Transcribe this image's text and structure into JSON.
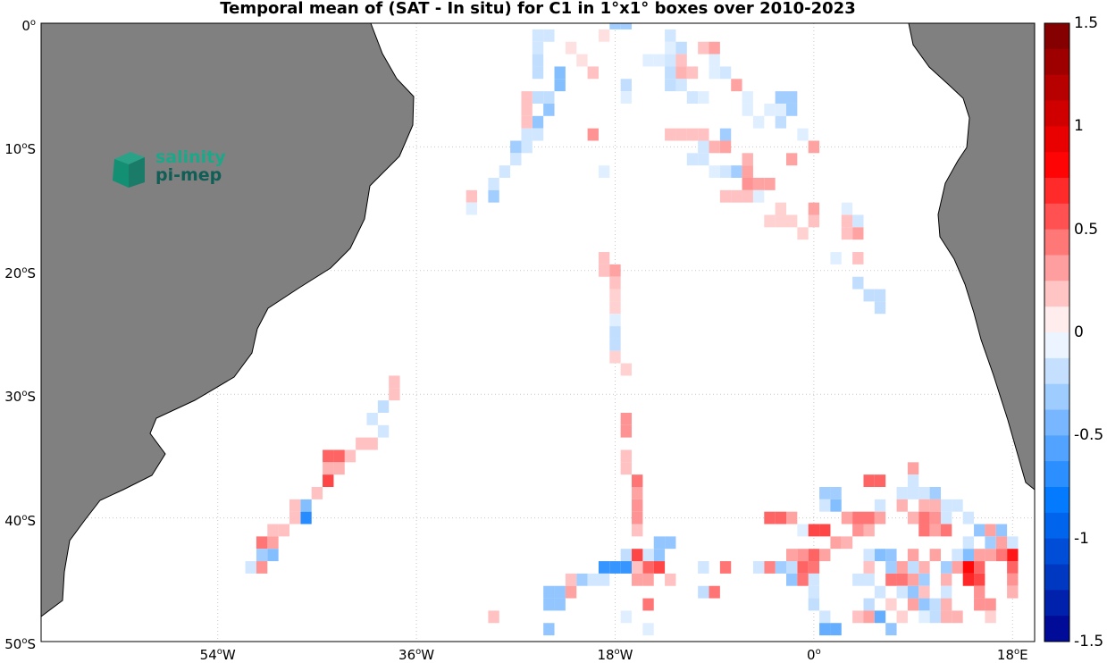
{
  "title": "Temporal mean of (SAT - In situ) for C1 in 1°x1° boxes over 2010-2023",
  "logo": {
    "line1": "salinity",
    "line2": "pi-mep"
  },
  "lat_labels": [
    {
      "deg": "0",
      "hemi": "",
      "lat": 0
    },
    {
      "deg": "10",
      "hemi": "S",
      "lat": -10
    },
    {
      "deg": "20",
      "hemi": "S",
      "lat": -20
    },
    {
      "deg": "30",
      "hemi": "S",
      "lat": -30
    },
    {
      "deg": "40",
      "hemi": "S",
      "lat": -40
    },
    {
      "deg": "50",
      "hemi": "S",
      "lat": -50
    }
  ],
  "lon_labels": [
    {
      "deg": "54",
      "hemi": "W",
      "lon": -54
    },
    {
      "deg": "36",
      "hemi": "W",
      "lon": -36
    },
    {
      "deg": "18",
      "hemi": "W",
      "lon": -18
    },
    {
      "deg": "0",
      "hemi": "",
      "lon": 0
    },
    {
      "deg": "18",
      "hemi": "E",
      "lon": 18
    }
  ],
  "colorbar": {
    "min": -1.5,
    "max": 1.5,
    "tick_labels": [
      "1.5",
      "1",
      "0.5",
      "0",
      "-0.5",
      "-1",
      "-1.5"
    ],
    "tick_values": [
      1.5,
      1,
      0.5,
      0,
      -0.5,
      -1,
      -1.5
    ]
  },
  "chart_data": {
    "type": "heatmap",
    "title": "Temporal mean of (SAT - In situ) for C1 in 1°x1° boxes over 2010-2023",
    "x_range_deg": [
      -70,
      20
    ],
    "y_range_deg": [
      -50,
      0
    ],
    "grid": true,
    "cell_size_deg": 1,
    "colormap": "blue-white-red",
    "colorbar_range": [
      -1.5,
      1.5
    ],
    "colors": {
      "land": "#808080",
      "coast": "#000000"
    },
    "cells": [
      [
        -25,
        -1,
        -0.15
      ],
      [
        -24,
        -1,
        -0.15
      ],
      [
        -25,
        -2,
        -0.15
      ],
      [
        -25,
        -3,
        -0.2
      ],
      [
        -25,
        -4,
        -0.2
      ],
      [
        -23,
        -4,
        -0.4
      ],
      [
        -23,
        -5,
        -0.4
      ],
      [
        -24,
        -6,
        -0.2
      ],
      [
        -25,
        -6,
        -0.2
      ],
      [
        -24,
        -7,
        -0.35
      ],
      [
        -25,
        -8,
        -0.35
      ],
      [
        -26,
        -6,
        0.2
      ],
      [
        -26,
        -7,
        0.2
      ],
      [
        -26,
        -8,
        0.2
      ],
      [
        -25,
        -9,
        -0.15
      ],
      [
        -26,
        -9,
        -0.15
      ],
      [
        -26,
        -10,
        -0.15
      ],
      [
        -27,
        -10,
        -0.3
      ],
      [
        -27,
        -11,
        -0.15
      ],
      [
        -28,
        -12,
        -0.15
      ],
      [
        -29,
        -13,
        -0.15
      ],
      [
        -29,
        -14,
        -0.3
      ],
      [
        -31,
        -14,
        0.2
      ],
      [
        -31,
        -15,
        -0.1
      ],
      [
        -22,
        -2,
        0.1
      ],
      [
        -21,
        -3,
        0.1
      ],
      [
        -20,
        -4,
        0.2
      ],
      [
        -19,
        -1,
        0.1
      ],
      [
        -18,
        0,
        -0.3
      ],
      [
        -17,
        0,
        -0.3
      ],
      [
        -17,
        -5,
        -0.2
      ],
      [
        -17,
        -6,
        -0.1
      ],
      [
        -20,
        -9,
        0.35
      ],
      [
        -19,
        -12,
        -0.1
      ],
      [
        -15,
        -3,
        -0.1
      ],
      [
        -14,
        -3,
        -0.1
      ],
      [
        -13,
        -2,
        -0.1
      ],
      [
        -13,
        -3,
        -0.15
      ],
      [
        -13,
        -4,
        -0.2
      ],
      [
        -12,
        -4,
        0.25
      ],
      [
        -13,
        -5,
        -0.2
      ],
      [
        -12,
        -5,
        -0.15
      ],
      [
        -11,
        -6,
        -0.15
      ],
      [
        -10,
        -6,
        -0.1
      ],
      [
        -13,
        -1,
        -0.15
      ],
      [
        -12,
        -2,
        -0.2
      ],
      [
        -12,
        -3,
        0.2
      ],
      [
        -11,
        -4,
        0.2
      ],
      [
        -10,
        -2,
        0.2
      ],
      [
        -9,
        -2,
        0.3
      ],
      [
        -9,
        -3,
        -0.1
      ],
      [
        -9,
        -4,
        -0.1
      ],
      [
        -8,
        -4,
        -0.15
      ],
      [
        -7,
        -5,
        0.3
      ],
      [
        -3,
        -6,
        -0.3
      ],
      [
        -2,
        -6,
        -0.3
      ],
      [
        -3,
        -7,
        -0.1
      ],
      [
        -4,
        -7,
        -0.1
      ],
      [
        -5,
        -8,
        -0.1
      ],
      [
        -2,
        -7,
        -0.3
      ],
      [
        -6,
        -6,
        -0.1
      ],
      [
        -6,
        -7,
        -0.1
      ],
      [
        -3,
        -8,
        -0.2
      ],
      [
        -13,
        -9,
        0.2
      ],
      [
        -12,
        -9,
        0.2
      ],
      [
        -11,
        -9,
        0.2
      ],
      [
        -10,
        -9,
        0.2
      ],
      [
        -8,
        -9,
        -0.3
      ],
      [
        -8,
        -10,
        0.3
      ],
      [
        -9,
        -10,
        0.25
      ],
      [
        -10,
        -10,
        -0.15
      ],
      [
        -11,
        -11,
        -0.15
      ],
      [
        -10,
        -11,
        -0.15
      ],
      [
        -9,
        -12,
        -0.1
      ],
      [
        -8,
        -12,
        -0.15
      ],
      [
        -7,
        -12,
        -0.3
      ],
      [
        -6,
        -11,
        0.25
      ],
      [
        -6,
        -12,
        0.3
      ],
      [
        -6,
        -13,
        0.35
      ],
      [
        -5,
        -13,
        0.3
      ],
      [
        -4,
        -13,
        0.3
      ],
      [
        -6,
        -14,
        0.2
      ],
      [
        -5,
        -14,
        -0.1
      ],
      [
        -7,
        -14,
        0.2
      ],
      [
        -8,
        -14,
        0.2
      ],
      [
        -3,
        -15,
        0.15
      ],
      [
        -4,
        -16,
        0.15
      ],
      [
        -3,
        -16,
        0.15
      ],
      [
        -2,
        -16,
        0.15
      ],
      [
        -1,
        -17,
        0.15
      ],
      [
        -2,
        -11,
        0.3
      ],
      [
        -1,
        -9,
        -0.1
      ],
      [
        0,
        -10,
        0.3
      ],
      [
        0,
        -15,
        0.3
      ],
      [
        0,
        -16,
        0.2
      ],
      [
        3,
        -15,
        -0.1
      ],
      [
        4,
        -16,
        -0.15
      ],
      [
        3,
        -16,
        0.2
      ],
      [
        4,
        -17,
        0.3
      ],
      [
        3,
        -17,
        0.2
      ],
      [
        2,
        -19,
        -0.1
      ],
      [
        4,
        -19,
        0.2
      ],
      [
        4,
        -21,
        -0.2
      ],
      [
        5,
        -22,
        -0.2
      ],
      [
        6,
        -23,
        -0.2
      ],
      [
        6,
        -22,
        -0.2
      ],
      [
        -19,
        -19,
        0.2
      ],
      [
        -19,
        -20,
        0.2
      ],
      [
        -18,
        -20,
        0.3
      ],
      [
        -18,
        -21,
        0.2
      ],
      [
        -18,
        -22,
        0.15
      ],
      [
        -18,
        -23,
        0.15
      ],
      [
        -18,
        -24,
        -0.1
      ],
      [
        -18,
        -25,
        -0.2
      ],
      [
        -18,
        -26,
        -0.2
      ],
      [
        -18,
        -27,
        0.15
      ],
      [
        -17,
        -28,
        0.15
      ],
      [
        -17,
        -32,
        0.35
      ],
      [
        -17,
        -33,
        0.35
      ],
      [
        -17,
        -35,
        0.2
      ],
      [
        -17,
        -36,
        0.2
      ],
      [
        -16,
        -37,
        0.45
      ],
      [
        -16,
        -38,
        0.3
      ],
      [
        -16,
        -39,
        0.35
      ],
      [
        -16,
        -40,
        0.35
      ],
      [
        -16,
        -41,
        0.2
      ],
      [
        -38,
        -29,
        0.2
      ],
      [
        -38,
        -30,
        0.2
      ],
      [
        -39,
        -31,
        -0.2
      ],
      [
        -40,
        -32,
        -0.15
      ],
      [
        -39,
        -33,
        -0.15
      ],
      [
        -40,
        -34,
        0.2
      ],
      [
        -41,
        -34,
        0.2
      ],
      [
        -42,
        -35,
        0.2
      ],
      [
        -43,
        -35,
        0.5
      ],
      [
        -44,
        -35,
        0.5
      ],
      [
        -43,
        -36,
        0.25
      ],
      [
        -44,
        -36,
        0.25
      ],
      [
        -44,
        -37,
        0.6
      ],
      [
        -45,
        -38,
        0.2
      ],
      [
        -46,
        -39,
        -0.4
      ],
      [
        -46,
        -40,
        -0.7
      ],
      [
        -47,
        -39,
        0.2
      ],
      [
        -47,
        -40,
        0.2
      ],
      [
        -48,
        -41,
        0.2
      ],
      [
        -49,
        -41,
        0.2
      ],
      [
        -49,
        -42,
        0.3
      ],
      [
        -50,
        -42,
        0.45
      ],
      [
        -50,
        -43,
        -0.3
      ],
      [
        -49,
        -43,
        -0.4
      ],
      [
        -51,
        -44,
        -0.15
      ],
      [
        -50,
        -44,
        0.35
      ],
      [
        -14,
        -42,
        -0.35
      ],
      [
        -13,
        -42,
        -0.35
      ],
      [
        -14,
        -43,
        -0.35
      ],
      [
        -15,
        -43,
        -0.15
      ],
      [
        -17,
        -43,
        -0.2
      ],
      [
        -17,
        -44,
        -0.65
      ],
      [
        -18,
        -44,
        -0.65
      ],
      [
        -19,
        -44,
        -0.65
      ],
      [
        -16,
        -43,
        0.6
      ],
      [
        -15,
        -44,
        0.5
      ],
      [
        -16,
        -44,
        0.2
      ],
      [
        -14,
        -44,
        0.6
      ],
      [
        -16,
        -45,
        0.3
      ],
      [
        -15,
        -45,
        0.3
      ],
      [
        -13,
        -45,
        0.2
      ],
      [
        -10,
        -44,
        -0.15
      ],
      [
        -8,
        -44,
        0.45
      ],
      [
        -22,
        -45,
        0.2
      ],
      [
        -21,
        -45,
        -0.3
      ],
      [
        -20,
        -45,
        -0.15
      ],
      [
        -19,
        -45,
        -0.15
      ],
      [
        -22,
        -46,
        0.3
      ],
      [
        -23,
        -46,
        -0.35
      ],
      [
        -24,
        -46,
        -0.35
      ],
      [
        -23,
        -47,
        -0.35
      ],
      [
        -24,
        -47,
        -0.35
      ],
      [
        -15,
        -47,
        0.45
      ],
      [
        -10,
        -46,
        -0.2
      ],
      [
        -9,
        -46,
        0.45
      ],
      [
        -29,
        -48,
        0.2
      ],
      [
        -24,
        -49,
        -0.35
      ],
      [
        -17,
        -48,
        -0.1
      ],
      [
        -15,
        -49,
        -0.1
      ],
      [
        -4,
        -40,
        0.5
      ],
      [
        -3,
        -40,
        0.5
      ],
      [
        -2,
        -40,
        0.3
      ],
      [
        -1,
        -41,
        -0.1
      ],
      [
        0,
        -41,
        0.6
      ],
      [
        1,
        -41,
        0.6
      ],
      [
        2,
        -42,
        0.3
      ],
      [
        3,
        -42,
        0.25
      ],
      [
        1,
        -38,
        -0.3
      ],
      [
        2,
        -38,
        -0.3
      ],
      [
        1,
        -39,
        -0.15
      ],
      [
        2,
        -39,
        -0.4
      ],
      [
        3,
        -40,
        0.3
      ],
      [
        4,
        -40,
        0.45
      ],
      [
        5,
        -40,
        0.45
      ],
      [
        4,
        -41,
        0.35
      ],
      [
        5,
        -41,
        0.25
      ],
      [
        6,
        -39,
        -0.15
      ],
      [
        6,
        -40,
        0.3
      ],
      [
        5,
        -37,
        0.5
      ],
      [
        6,
        -37,
        0.5
      ],
      [
        8,
        -38,
        -0.15
      ],
      [
        9,
        -38,
        -0.15
      ],
      [
        10,
        -38,
        -0.15
      ],
      [
        11,
        -38,
        -0.3
      ],
      [
        9,
        -36,
        0.3
      ],
      [
        9,
        -37,
        -0.15
      ],
      [
        8,
        -39,
        0.25
      ],
      [
        10,
        -39,
        0.25
      ],
      [
        11,
        -39,
        0.25
      ],
      [
        12,
        -39,
        -0.15
      ],
      [
        13,
        -39,
        -0.15
      ],
      [
        9,
        -40,
        0.25
      ],
      [
        10,
        -40,
        0.45
      ],
      [
        11,
        -40,
        0.35
      ],
      [
        12,
        -40,
        -0.15
      ],
      [
        14,
        -40,
        -0.15
      ],
      [
        10,
        -41,
        0.45
      ],
      [
        11,
        -41,
        0.3
      ],
      [
        12,
        -41,
        0.45
      ],
      [
        15,
        -41,
        -0.35
      ],
      [
        16,
        -41,
        0.3
      ],
      [
        17,
        -41,
        -0.35
      ],
      [
        18,
        -42,
        -0.15
      ],
      [
        17,
        -42,
        0.3
      ],
      [
        16,
        -42,
        -0.3
      ],
      [
        14,
        -42,
        -0.15
      ],
      [
        18,
        -43,
        0.75
      ],
      [
        17,
        -43,
        0.45
      ],
      [
        16,
        -43,
        0.3
      ],
      [
        15,
        -43,
        0.3
      ],
      [
        14,
        -43,
        -0.4
      ],
      [
        13,
        -43,
        -0.15
      ],
      [
        11,
        -43,
        0.3
      ],
      [
        9,
        -43,
        0.3
      ],
      [
        7,
        -43,
        -0.35
      ],
      [
        6,
        -43,
        -0.4
      ],
      [
        5,
        -43,
        -0.15
      ],
      [
        -1,
        -43,
        0.35
      ],
      [
        0,
        -43,
        0.5
      ],
      [
        1,
        -43,
        0.3
      ],
      [
        -2,
        -43,
        0.3
      ],
      [
        13,
        -44,
        0.3
      ],
      [
        14,
        -44,
        0.8
      ],
      [
        15,
        -44,
        0.5
      ],
      [
        18,
        -44,
        0.5
      ],
      [
        12,
        -44,
        -0.3
      ],
      [
        10,
        -44,
        0.25
      ],
      [
        9,
        -44,
        -0.2
      ],
      [
        8,
        -44,
        0.3
      ],
      [
        7,
        -44,
        -0.3
      ],
      [
        5,
        -44,
        0.2
      ],
      [
        0,
        -44,
        0.45
      ],
      [
        -1,
        -44,
        0.5
      ],
      [
        -2,
        -44,
        -0.2
      ],
      [
        -3,
        -44,
        -0.3
      ],
      [
        -4,
        -44,
        0.4
      ],
      [
        -5,
        -44,
        -0.15
      ],
      [
        0,
        -45,
        -0.15
      ],
      [
        -2,
        -45,
        -0.35
      ],
      [
        -1,
        -45,
        0.45
      ],
      [
        15,
        -45,
        0.6
      ],
      [
        14,
        -45,
        0.7
      ],
      [
        18,
        -45,
        0.35
      ],
      [
        12,
        -45,
        0.25
      ],
      [
        10,
        -45,
        -0.3
      ],
      [
        9,
        -45,
        0.3
      ],
      [
        8,
        -45,
        0.45
      ],
      [
        7,
        -45,
        0.45
      ],
      [
        5,
        -45,
        -0.15
      ],
      [
        4,
        -45,
        -0.15
      ],
      [
        0,
        -46,
        -0.15
      ],
      [
        6,
        -46,
        -0.15
      ],
      [
        8,
        -46,
        -0.15
      ],
      [
        9,
        -46,
        -0.35
      ],
      [
        15,
        -46,
        0.35
      ],
      [
        18,
        -46,
        0.25
      ],
      [
        10,
        -46,
        0.2
      ],
      [
        12,
        -46,
        -0.15
      ],
      [
        0,
        -47,
        -0.2
      ],
      [
        5,
        -47,
        -0.2
      ],
      [
        7,
        -47,
        0.15
      ],
      [
        9,
        -47,
        0.3
      ],
      [
        10,
        -47,
        -0.35
      ],
      [
        12,
        -47,
        0.25
      ],
      [
        15,
        -47,
        0.35
      ],
      [
        16,
        -47,
        0.35
      ],
      [
        11,
        -47,
        -0.2
      ],
      [
        1,
        -48,
        -0.15
      ],
      [
        4,
        -48,
        0.2
      ],
      [
        5,
        -48,
        0.3
      ],
      [
        6,
        -48,
        -0.5
      ],
      [
        8,
        -48,
        0.15
      ],
      [
        10,
        -48,
        -0.1
      ],
      [
        11,
        -48,
        -0.2
      ],
      [
        12,
        -48,
        0.25
      ],
      [
        13,
        -48,
        0.25
      ],
      [
        16,
        -48,
        0.15
      ],
      [
        1,
        -49,
        -0.5
      ],
      [
        2,
        -49,
        -0.5
      ],
      [
        7,
        -49,
        -0.35
      ]
    ]
  }
}
